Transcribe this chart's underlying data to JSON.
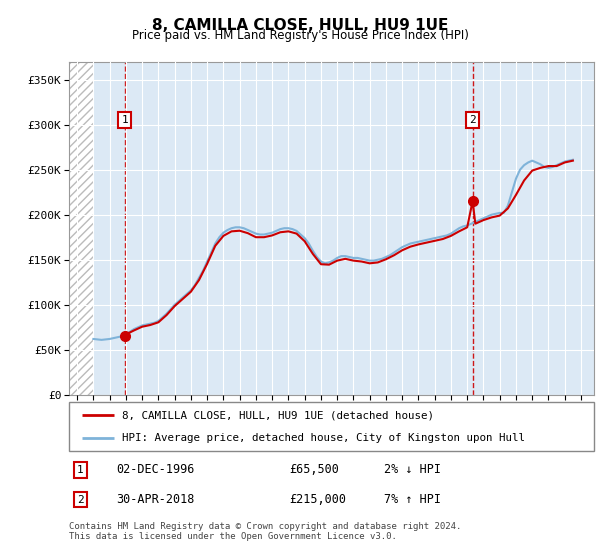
{
  "title": "8, CAMILLA CLOSE, HULL, HU9 1UE",
  "subtitle": "Price paid vs. HM Land Registry's House Price Index (HPI)",
  "xlim_start": 1993.5,
  "xlim_end": 2025.8,
  "ylim": [
    0,
    370000
  ],
  "yticks": [
    0,
    50000,
    100000,
    150000,
    200000,
    250000,
    300000,
    350000
  ],
  "ytick_labels": [
    "£0",
    "£50K",
    "£100K",
    "£150K",
    "£200K",
    "£250K",
    "£300K",
    "£350K"
  ],
  "xticks": [
    1994,
    1995,
    1996,
    1997,
    1998,
    1999,
    2000,
    2001,
    2002,
    2003,
    2004,
    2005,
    2006,
    2007,
    2008,
    2009,
    2010,
    2011,
    2012,
    2013,
    2014,
    2015,
    2016,
    2017,
    2018,
    2019,
    2020,
    2021,
    2022,
    2023,
    2024,
    2025
  ],
  "sale1_year": 1996.92,
  "sale1_price": 65500,
  "sale1_label": "1",
  "sale1_date": "02-DEC-1996",
  "sale1_amount": "£65,500",
  "sale1_hpi": "2% ↓ HPI",
  "sale2_year": 2018.33,
  "sale2_price": 215000,
  "sale2_label": "2",
  "sale2_date": "30-APR-2018",
  "sale2_amount": "£215,000",
  "sale2_hpi": "7% ↑ HPI",
  "line1_color": "#cc0000",
  "line2_color": "#7fb3d9",
  "marker_color": "#cc0000",
  "bg_color": "#dce9f5",
  "grid_color": "#ffffff",
  "legend_line1": "8, CAMILLA CLOSE, HULL, HU9 1UE (detached house)",
  "legend_line2": "HPI: Average price, detached house, City of Kingston upon Hull",
  "footer": "Contains HM Land Registry data © Crown copyright and database right 2024.\nThis data is licensed under the Open Government Licence v3.0.",
  "hpi_data": {
    "years": [
      1995.0,
      1995.25,
      1995.5,
      1995.75,
      1996.0,
      1996.25,
      1996.5,
      1996.75,
      1997.0,
      1997.25,
      1997.5,
      1997.75,
      1998.0,
      1998.25,
      1998.5,
      1998.75,
      1999.0,
      1999.25,
      1999.5,
      1999.75,
      2000.0,
      2000.25,
      2000.5,
      2000.75,
      2001.0,
      2001.25,
      2001.5,
      2001.75,
      2002.0,
      2002.25,
      2002.5,
      2002.75,
      2003.0,
      2003.25,
      2003.5,
      2003.75,
      2004.0,
      2004.25,
      2004.5,
      2004.75,
      2005.0,
      2005.25,
      2005.5,
      2005.75,
      2006.0,
      2006.25,
      2006.5,
      2006.75,
      2007.0,
      2007.25,
      2007.5,
      2007.75,
      2008.0,
      2008.25,
      2008.5,
      2008.75,
      2009.0,
      2009.25,
      2009.5,
      2009.75,
      2010.0,
      2010.25,
      2010.5,
      2010.75,
      2011.0,
      2011.25,
      2011.5,
      2011.75,
      2012.0,
      2012.25,
      2012.5,
      2012.75,
      2013.0,
      2013.25,
      2013.5,
      2013.75,
      2014.0,
      2014.25,
      2014.5,
      2014.75,
      2015.0,
      2015.25,
      2015.5,
      2015.75,
      2016.0,
      2016.25,
      2016.5,
      2016.75,
      2017.0,
      2017.25,
      2017.5,
      2017.75,
      2018.0,
      2018.25,
      2018.5,
      2018.75,
      2019.0,
      2019.25,
      2019.5,
      2019.75,
      2020.0,
      2020.25,
      2020.5,
      2020.75,
      2021.0,
      2021.25,
      2021.5,
      2021.75,
      2022.0,
      2022.25,
      2022.5,
      2022.75,
      2023.0,
      2023.25,
      2023.5,
      2023.75,
      2024.0,
      2024.25,
      2024.5
    ],
    "values": [
      62000,
      61500,
      61000,
      61500,
      62000,
      63000,
      64000,
      65000,
      67000,
      70000,
      73000,
      75000,
      77000,
      78000,
      79000,
      80000,
      82000,
      86000,
      90000,
      95000,
      100000,
      104000,
      108000,
      112000,
      116000,
      122000,
      130000,
      138000,
      148000,
      158000,
      168000,
      175000,
      180000,
      183000,
      185000,
      186000,
      186000,
      185000,
      183000,
      181000,
      179000,
      178000,
      178000,
      179000,
      180000,
      182000,
      184000,
      185000,
      185000,
      184000,
      182000,
      178000,
      174000,
      168000,
      160000,
      153000,
      148000,
      146000,
      147000,
      149000,
      152000,
      154000,
      154000,
      153000,
      152000,
      152000,
      151000,
      150000,
      149000,
      149000,
      150000,
      151000,
      153000,
      155000,
      158000,
      161000,
      164000,
      166000,
      168000,
      169000,
      170000,
      171000,
      172000,
      173000,
      174000,
      175000,
      176000,
      177000,
      179000,
      182000,
      185000,
      187000,
      188000,
      190000,
      192000,
      194000,
      196000,
      198000,
      200000,
      201000,
      202000,
      202000,
      210000,
      225000,
      240000,
      250000,
      255000,
      258000,
      260000,
      258000,
      256000,
      253000,
      252000,
      253000,
      255000,
      257000,
      259000,
      260000,
      261000
    ]
  },
  "price_line_data": {
    "years": [
      1996.92,
      1997.0,
      1997.5,
      1998.0,
      1998.5,
      1999.0,
      1999.5,
      2000.0,
      2000.5,
      2001.0,
      2001.5,
      2002.0,
      2002.5,
      2003.0,
      2003.5,
      2004.0,
      2004.5,
      2005.0,
      2005.5,
      2006.0,
      2006.5,
      2007.0,
      2007.5,
      2008.0,
      2008.5,
      2009.0,
      2009.5,
      2010.0,
      2010.5,
      2011.0,
      2011.5,
      2012.0,
      2012.5,
      2013.0,
      2013.5,
      2014.0,
      2014.5,
      2015.0,
      2015.5,
      2016.0,
      2016.5,
      2017.0,
      2017.5,
      2018.0,
      2018.33,
      2018.5,
      2019.0,
      2019.5,
      2020.0,
      2020.5,
      2021.0,
      2021.5,
      2022.0,
      2022.5,
      2023.0,
      2023.5,
      2024.0,
      2024.5
    ],
    "values": [
      65500,
      67000,
      71500,
      75600,
      77500,
      80500,
      88500,
      98500,
      106500,
      114500,
      127500,
      145500,
      165500,
      176500,
      181500,
      182200,
      179500,
      175000,
      175000,
      177000,
      180500,
      181500,
      179000,
      170500,
      156500,
      145000,
      144500,
      149000,
      151000,
      149000,
      148000,
      146000,
      147000,
      150500,
      155000,
      160500,
      164500,
      167000,
      169000,
      171000,
      173000,
      176500,
      181500,
      186000,
      215000,
      190000,
      194000,
      197000,
      199000,
      207000,
      222000,
      238000,
      249000,
      252000,
      254000,
      254000,
      258000,
      260000
    ]
  }
}
